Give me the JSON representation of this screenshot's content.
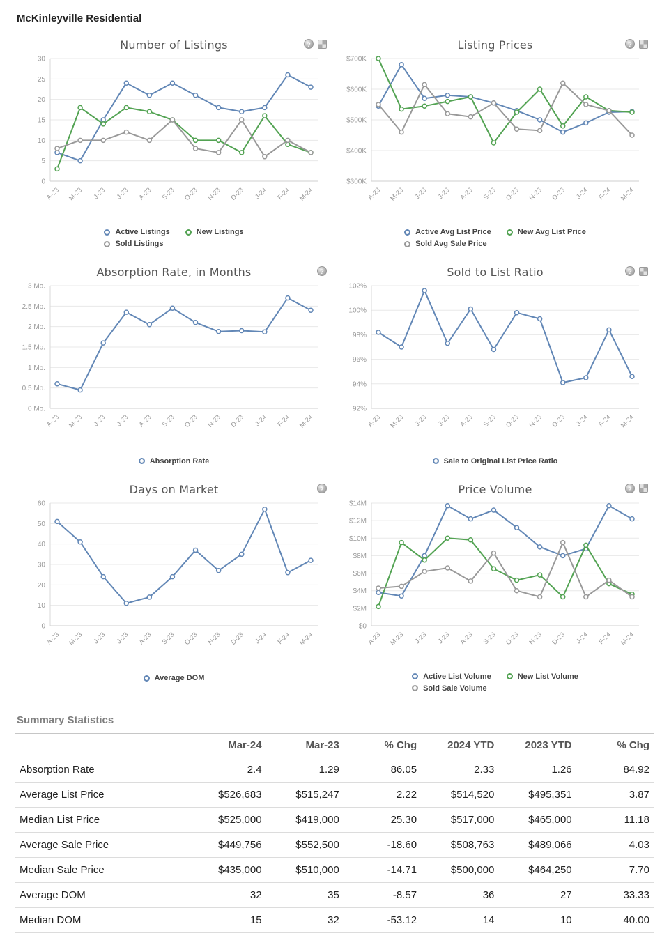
{
  "page_title": "McKinleyville Residential",
  "summary": {
    "title": "Summary Statistics",
    "columns": [
      "",
      "Mar-24",
      "Mar-23",
      "% Chg",
      "2024 YTD",
      "2023 YTD",
      "% Chg"
    ],
    "rows": [
      [
        "Absorption Rate",
        "2.4",
        "1.29",
        "86.05",
        "2.33",
        "1.26",
        "84.92"
      ],
      [
        "Average List Price",
        "$526,683",
        "$515,247",
        "2.22",
        "$514,520",
        "$495,351",
        "3.87"
      ],
      [
        "Median List Price",
        "$525,000",
        "$419,000",
        "25.30",
        "$517,000",
        "$465,000",
        "11.18"
      ],
      [
        "Average Sale Price",
        "$449,756",
        "$552,500",
        "-18.60",
        "$508,763",
        "$489,066",
        "4.03"
      ],
      [
        "Median Sale Price",
        "$435,000",
        "$510,000",
        "-14.71",
        "$500,000",
        "$464,250",
        "7.70"
      ],
      [
        "Average DOM",
        "32",
        "35",
        "-8.57",
        "36",
        "27",
        "33.33"
      ],
      [
        "Median DOM",
        "15",
        "32",
        "-53.12",
        "14",
        "10",
        "40.00"
      ]
    ]
  },
  "chart_data": [
    {
      "type": "line",
      "title": "Number of Listings",
      "x": [
        "A-23",
        "M-23",
        "J-23",
        "J-23",
        "A-23",
        "S-23",
        "O-23",
        "N-23",
        "D-23",
        "J-24",
        "F-24",
        "M-24"
      ],
      "ylim": [
        0,
        30
      ],
      "yticks": [
        0,
        5,
        10,
        15,
        20,
        25,
        30
      ],
      "ytick_labels": [
        "0",
        "5",
        "10",
        "15",
        "20",
        "25",
        "30"
      ],
      "icons": [
        "info-icon",
        "export-icon"
      ],
      "series": [
        {
          "name": "Active Listings",
          "color": "#6287b6",
          "values": [
            7,
            5,
            15,
            24,
            21,
            24,
            21,
            18,
            17,
            18,
            26,
            23
          ]
        },
        {
          "name": "New Listings",
          "color": "#53a353",
          "values": [
            3,
            18,
            14,
            18,
            17,
            15,
            10,
            10,
            7,
            16,
            9,
            7
          ]
        },
        {
          "name": "Sold Listings",
          "color": "#999999",
          "values": [
            8,
            10,
            10,
            12,
            10,
            15,
            8,
            7,
            15,
            6,
            10,
            7
          ]
        }
      ]
    },
    {
      "type": "line",
      "title": "Listing Prices",
      "x": [
        "A-23",
        "M-23",
        "J-23",
        "J-23",
        "A-23",
        "S-23",
        "O-23",
        "N-23",
        "D-23",
        "J-24",
        "F-24",
        "M-24"
      ],
      "ylim": [
        300,
        700
      ],
      "yticks": [
        300,
        400,
        500,
        600,
        700
      ],
      "ytick_labels": [
        "$300K",
        "$400K",
        "$500K",
        "$600K",
        "$700K"
      ],
      "icons": [
        "info-icon",
        "export-icon"
      ],
      "series": [
        {
          "name": "Active Avg List Price",
          "color": "#6287b6",
          "values": [
            545,
            680,
            570,
            580,
            575,
            555,
            530,
            500,
            460,
            490,
            525,
            527
          ]
        },
        {
          "name": "New Avg List Price",
          "color": "#53a353",
          "values": [
            700,
            535,
            545,
            560,
            575,
            425,
            525,
            600,
            480,
            575,
            530,
            525
          ]
        },
        {
          "name": "Sold Avg Sale Price",
          "color": "#999999",
          "values": [
            550,
            460,
            615,
            520,
            510,
            555,
            470,
            465,
            620,
            550,
            530,
            450
          ]
        }
      ]
    },
    {
      "type": "line",
      "title": "Absorption Rate, in Months",
      "x": [
        "A-23",
        "M-23",
        "J-23",
        "J-23",
        "A-23",
        "S-23",
        "O-23",
        "N-23",
        "D-23",
        "J-24",
        "F-24",
        "M-24"
      ],
      "ylim": [
        0,
        3
      ],
      "yticks": [
        0,
        0.5,
        1,
        1.5,
        2,
        2.5,
        3
      ],
      "ytick_labels": [
        "0 Mo.",
        "0.5 Mo.",
        "1 Mo.",
        "1.5 Mo.",
        "2 Mo.",
        "2.5 Mo.",
        "3 Mo."
      ],
      "icons": [
        "info-icon"
      ],
      "series": [
        {
          "name": "Absorption Rate",
          "color": "#6287b6",
          "values": [
            0.6,
            0.45,
            1.6,
            2.35,
            2.05,
            2.45,
            2.1,
            1.88,
            1.9,
            1.87,
            2.7,
            2.4
          ]
        }
      ]
    },
    {
      "type": "line",
      "title": "Sold to List Ratio",
      "x": [
        "A-23",
        "M-23",
        "J-23",
        "J-23",
        "A-23",
        "S-23",
        "O-23",
        "N-23",
        "D-23",
        "J-24",
        "F-24",
        "M-24"
      ],
      "ylim": [
        92,
        102
      ],
      "yticks": [
        92,
        94,
        96,
        98,
        100,
        102
      ],
      "ytick_labels": [
        "92%",
        "94%",
        "96%",
        "98%",
        "100%",
        "102%"
      ],
      "icons": [
        "info-icon",
        "export-icon"
      ],
      "series": [
        {
          "name": "Sale to Original List Price Ratio",
          "color": "#6287b6",
          "values": [
            98.2,
            97.0,
            101.6,
            97.3,
            100.1,
            96.8,
            99.8,
            99.3,
            94.1,
            94.5,
            98.4,
            94.6
          ]
        }
      ]
    },
    {
      "type": "line",
      "title": "Days on Market",
      "x": [
        "A-23",
        "M-23",
        "J-23",
        "J-23",
        "A-23",
        "S-23",
        "O-23",
        "N-23",
        "D-23",
        "J-24",
        "F-24",
        "M-24"
      ],
      "ylim": [
        0,
        60
      ],
      "yticks": [
        0,
        10,
        20,
        30,
        40,
        50,
        60
      ],
      "ytick_labels": [
        "0",
        "10",
        "20",
        "30",
        "40",
        "50",
        "60"
      ],
      "icons": [
        "info-icon"
      ],
      "series": [
        {
          "name": "Average DOM",
          "color": "#6287b6",
          "values": [
            51,
            41,
            24,
            11,
            14,
            24,
            37,
            27,
            35,
            57,
            26,
            32
          ]
        }
      ]
    },
    {
      "type": "line",
      "title": "Price Volume",
      "x": [
        "A-23",
        "M-23",
        "J-23",
        "J-23",
        "A-23",
        "S-23",
        "O-23",
        "N-23",
        "D-23",
        "J-24",
        "F-24",
        "M-24"
      ],
      "ylim": [
        0,
        14
      ],
      "yticks": [
        0,
        2,
        4,
        6,
        8,
        10,
        12,
        14
      ],
      "ytick_labels": [
        "$0",
        "$2M",
        "$4M",
        "$6M",
        "$8M",
        "$10M",
        "$12M",
        "$14M"
      ],
      "icons": [
        "info-icon",
        "export-icon"
      ],
      "series": [
        {
          "name": "Active List Volume",
          "color": "#6287b6",
          "values": [
            3.8,
            3.4,
            8.0,
            13.7,
            12.2,
            13.2,
            11.2,
            9.0,
            8.0,
            8.8,
            13.7,
            12.2
          ]
        },
        {
          "name": "New List Volume",
          "color": "#53a353",
          "values": [
            2.2,
            9.5,
            7.5,
            10.0,
            9.8,
            6.5,
            5.2,
            5.8,
            3.3,
            9.2,
            4.8,
            3.6
          ]
        },
        {
          "name": "Sold Sale Volume",
          "color": "#999999",
          "values": [
            4.3,
            4.5,
            6.2,
            6.6,
            5.1,
            8.3,
            4.0,
            3.3,
            9.5,
            3.3,
            5.2,
            3.3
          ]
        }
      ]
    }
  ]
}
